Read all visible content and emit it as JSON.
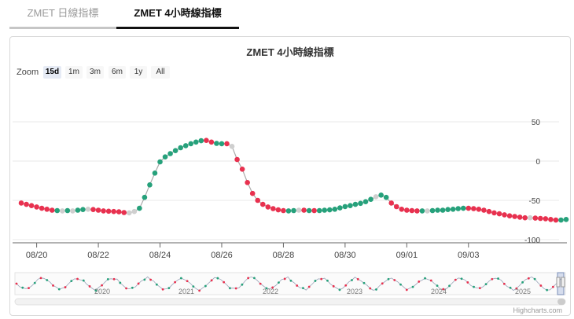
{
  "tabs": [
    {
      "label": "ZMET 日線指標"
    },
    {
      "label": "ZMET 4小時線指標"
    }
  ],
  "chart": {
    "title": "ZMET 4小時線指標",
    "zoom_label": "Zoom",
    "zoom_buttons": [
      "15d",
      "1m",
      "3m",
      "6m",
      "1y",
      "All"
    ],
    "zoom_active": "15d",
    "credits": "Highcharts.com"
  },
  "colors": {
    "up": "#26a17b",
    "down": "#e8314f",
    "neutral": "#cfcfcf",
    "line": "#a9a9a9"
  },
  "chart_data": {
    "type": "line",
    "title": "ZMET 4小時線指標",
    "xlabel": "",
    "ylabel": "",
    "ylim": [
      -100,
      50
    ],
    "yticks": [
      50,
      0,
      -50,
      -100
    ],
    "xticks": [
      "08/20",
      "08/22",
      "08/24",
      "08/26",
      "08/28",
      "08/30",
      "09/01",
      "09/03"
    ],
    "x_start": "08/19 12:00",
    "x_step_hours": 4,
    "values": [
      -53.4,
      -55.1,
      -56.7,
      -58.4,
      -60.1,
      -61.3,
      -62.5,
      -63.0,
      -63.4,
      -63.0,
      -63.4,
      -62.5,
      -61.7,
      -61.3,
      -61.7,
      -62.5,
      -63.4,
      -63.8,
      -64.2,
      -64.6,
      -65.5,
      -65.9,
      -64.2,
      -60.1,
      -46.2,
      -30.3,
      -15.3,
      -1.0,
      5.3,
      9.5,
      13.3,
      17.0,
      19.6,
      22.1,
      24.2,
      25.9,
      26.3,
      24.2,
      22.5,
      22.1,
      22.1,
      18.7,
      2.0,
      -10.3,
      -27.3,
      -41.2,
      -50.0,
      -55.1,
      -58.4,
      -60.5,
      -62.1,
      -63.0,
      -63.4,
      -63.0,
      -62.5,
      -62.5,
      -63.0,
      -63.0,
      -63.0,
      -62.5,
      -62.1,
      -61.3,
      -59.6,
      -57.9,
      -56.7,
      -55.1,
      -53.8,
      -51.7,
      -48.7,
      -45.4,
      -43.3,
      -46.2,
      -53.4,
      -58.0,
      -61.3,
      -62.5,
      -63.0,
      -63.4,
      -63.4,
      -63.4,
      -63.0,
      -62.5,
      -62.5,
      -61.7,
      -61.3,
      -60.5,
      -60.1,
      -60.1,
      -60.5,
      -61.3,
      -62.5,
      -64.2,
      -65.9,
      -67.1,
      -68.4,
      -69.7,
      -70.5,
      -71.4,
      -72.2,
      -72.2,
      -72.6,
      -73.0,
      -73.4,
      -74.3,
      -75.1,
      -75.1,
      -74.3
    ],
    "colors": [
      "r",
      "r",
      "r",
      "r",
      "r",
      "r",
      "r",
      "g",
      "n",
      "g",
      "n",
      "g",
      "g",
      "n",
      "r",
      "r",
      "r",
      "r",
      "r",
      "r",
      "r",
      "n",
      "n",
      "g",
      "g",
      "g",
      "g",
      "g",
      "g",
      "g",
      "g",
      "g",
      "g",
      "g",
      "g",
      "g",
      "r",
      "r",
      "g",
      "g",
      "r",
      "n",
      "r",
      "r",
      "r",
      "r",
      "r",
      "r",
      "r",
      "r",
      "r",
      "r",
      "g",
      "g",
      "n",
      "r",
      "g",
      "r",
      "g",
      "g",
      "g",
      "g",
      "g",
      "g",
      "g",
      "g",
      "g",
      "g",
      "g",
      "n",
      "g",
      "g",
      "r",
      "r",
      "r",
      "r",
      "r",
      "r",
      "g",
      "n",
      "g",
      "g",
      "g",
      "g",
      "g",
      "g",
      "g",
      "r",
      "r",
      "r",
      "r",
      "r",
      "r",
      "r",
      "r",
      "r",
      "r",
      "r",
      "r",
      "n",
      "r",
      "r",
      "r",
      "r",
      "r",
      "g",
      "g"
    ],
    "navigator_years": [
      "2020",
      "2021",
      "2022",
      "2023",
      "2024",
      "2025"
    ],
    "grid": true
  }
}
